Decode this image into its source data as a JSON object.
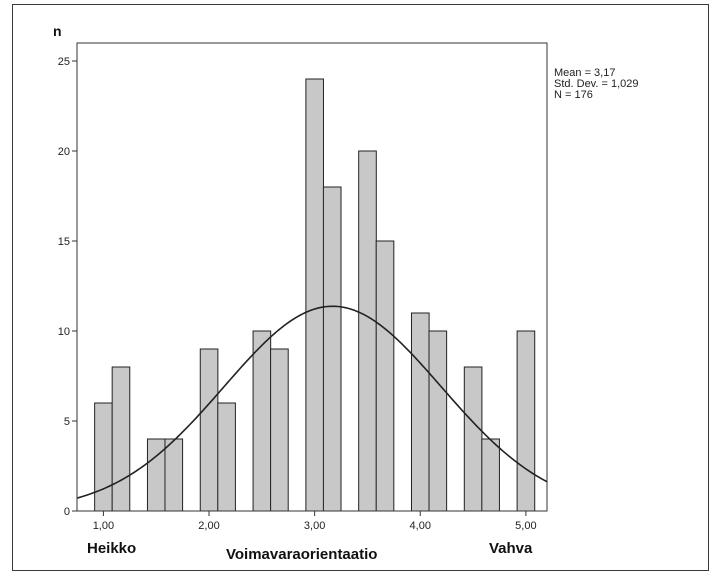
{
  "chart_data": {
    "type": "bar",
    "subtype": "histogram",
    "title": "",
    "xlabel": "Voimavaraorientaatio",
    "ylabel": "n",
    "x_end_labels": {
      "left": "Heikko",
      "right": "Vahva"
    },
    "xlim": [
      0.75,
      5.2
    ],
    "ylim": [
      0,
      26
    ],
    "x_ticks": [
      1.0,
      2.0,
      3.0,
      4.0,
      5.0
    ],
    "x_tick_labels": [
      "1,00",
      "2,00",
      "3,00",
      "4,00",
      "5,00"
    ],
    "y_ticks": [
      0,
      5,
      10,
      15,
      20,
      25
    ],
    "y_tick_labels": [
      "0",
      "5",
      "10",
      "15",
      "20",
      "25"
    ],
    "bin_width": 0.1667,
    "bins": [
      {
        "x_start": 0.917,
        "value": 6
      },
      {
        "x_start": 1.083,
        "value": 8
      },
      {
        "x_start": 1.417,
        "value": 4
      },
      {
        "x_start": 1.583,
        "value": 4
      },
      {
        "x_start": 1.917,
        "value": 9
      },
      {
        "x_start": 2.083,
        "value": 6
      },
      {
        "x_start": 2.417,
        "value": 10
      },
      {
        "x_start": 2.583,
        "value": 9
      },
      {
        "x_start": 2.917,
        "value": 24
      },
      {
        "x_start": 3.083,
        "value": 18
      },
      {
        "x_start": 3.417,
        "value": 20
      },
      {
        "x_start": 3.583,
        "value": 15
      },
      {
        "x_start": 3.917,
        "value": 11
      },
      {
        "x_start": 4.083,
        "value": 10
      },
      {
        "x_start": 4.417,
        "value": 8
      },
      {
        "x_start": 4.583,
        "value": 4
      },
      {
        "x_start": 4.917,
        "value": 10
      }
    ],
    "normal_curve": {
      "mean": 3.17,
      "std_dev": 1.029,
      "n": 176
    },
    "stats_text": [
      "Mean = 3,17",
      "Std. Dev. = 1,029",
      "N = 176"
    ],
    "bar_color": "#c8c8c8",
    "bar_edge_color": "#222222",
    "curve_color": "#222222",
    "grid": false,
    "stats_position": "top-right"
  }
}
